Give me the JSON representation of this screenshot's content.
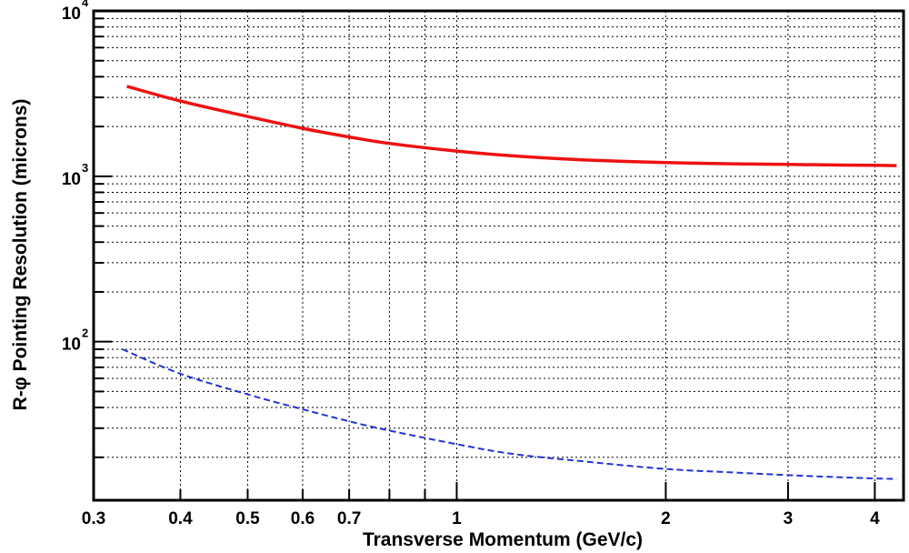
{
  "chart_data": {
    "type": "line",
    "title": "",
    "xlabel": "Transverse Momentum (GeV/c)",
    "ylabel": "R-φ Pointing Resolution (microns)",
    "x_scale": "log",
    "y_scale": "log",
    "xlim": [
      0.3,
      4.4
    ],
    "ylim": [
      11,
      10000
    ],
    "grid": true,
    "x_tick_labels": [
      {
        "value": 0.3,
        "label": "0.3"
      },
      {
        "value": 0.4,
        "label": "0.4"
      },
      {
        "value": 0.5,
        "label": "0.5"
      },
      {
        "value": 0.6,
        "label": "0.6"
      },
      {
        "value": 0.7,
        "label": "0.7"
      },
      {
        "value": 1,
        "label": "1"
      },
      {
        "value": 2,
        "label": "2"
      },
      {
        "value": 3,
        "label": "3"
      },
      {
        "value": 4,
        "label": "4"
      }
    ],
    "y_tick_labels": [
      {
        "value": 100,
        "base": "10",
        "exp": "2"
      },
      {
        "value": 1000,
        "base": "10",
        "exp": "3"
      },
      {
        "value": 10000,
        "base": "10",
        "exp": "4"
      }
    ],
    "series": [
      {
        "color": "#ee1111",
        "style": "solid",
        "x": [
          0.335,
          0.4,
          0.5,
          0.6,
          0.7,
          0.8,
          1.0,
          1.2,
          1.5,
          2.0,
          2.5,
          3.0,
          3.5,
          4.0,
          4.3
        ],
        "y": [
          3500,
          2850,
          2300,
          1950,
          1730,
          1580,
          1420,
          1330,
          1260,
          1210,
          1190,
          1180,
          1170,
          1165,
          1160
        ]
      },
      {
        "color": "#2233dd",
        "style": "dashed",
        "x": [
          0.33,
          0.4,
          0.5,
          0.6,
          0.7,
          0.8,
          1.0,
          1.2,
          1.5,
          2.0,
          2.5,
          3.0,
          3.5,
          4.0,
          4.3
        ],
        "y": [
          90,
          64,
          48,
          39,
          33,
          29,
          24,
          21,
          19,
          17,
          16.2,
          15.6,
          15.2,
          14.9,
          14.8
        ]
      }
    ]
  }
}
